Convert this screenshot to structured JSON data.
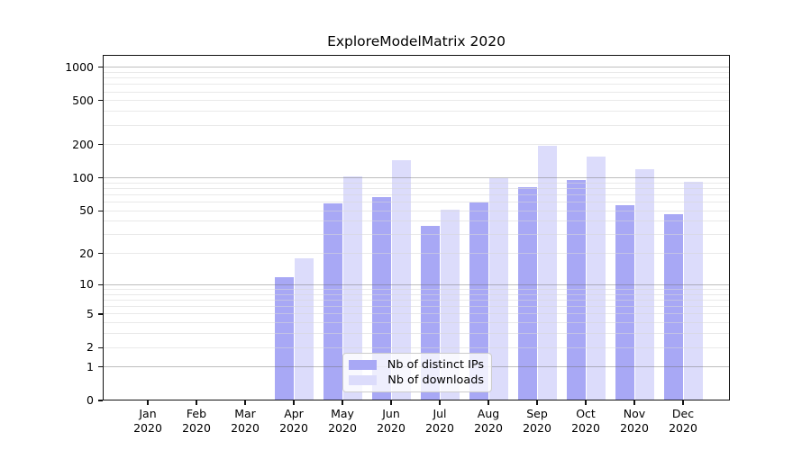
{
  "title": "ExploreModelMatrix 2020",
  "chart_data": {
    "type": "bar",
    "title": "ExploreModelMatrix 2020",
    "x_months": [
      "Jan",
      "Feb",
      "Mar",
      "Apr",
      "May",
      "Jun",
      "Jul",
      "Aug",
      "Sep",
      "Oct",
      "Nov",
      "Dec"
    ],
    "x_year": "2020",
    "categories": [
      "Jan 2020",
      "Feb 2020",
      "Mar 2020",
      "Apr 2020",
      "May 2020",
      "Jun 2020",
      "Jul 2020",
      "Aug 2020",
      "Sep 2020",
      "Oct 2020",
      "Nov 2020",
      "Dec 2020"
    ],
    "series": [
      {
        "name": "Nb of distinct IPs",
        "color": "#a8a8f5",
        "values": [
          0,
          0,
          0,
          12,
          59,
          67,
          36,
          60,
          83,
          96,
          56,
          47
        ]
      },
      {
        "name": "Nb of downloads",
        "color": "#dcdcfb",
        "values": [
          0,
          0,
          0,
          18,
          104,
          145,
          51,
          100,
          194,
          155,
          120,
          92
        ]
      }
    ],
    "yscale": "log1p",
    "ylim": [
      0,
      1270
    ],
    "yticks": [
      0,
      1,
      2,
      5,
      10,
      20,
      50,
      100,
      200,
      500,
      1000
    ],
    "major_gridlines": [
      1,
      10,
      100,
      1000
    ],
    "minor_gridlines": [
      2,
      3,
      4,
      5,
      6,
      7,
      8,
      9,
      20,
      30,
      40,
      50,
      60,
      70,
      80,
      90,
      200,
      300,
      400,
      500,
      600,
      700,
      800,
      900
    ],
    "grid": true,
    "legend_position": "lower-center-inside"
  }
}
